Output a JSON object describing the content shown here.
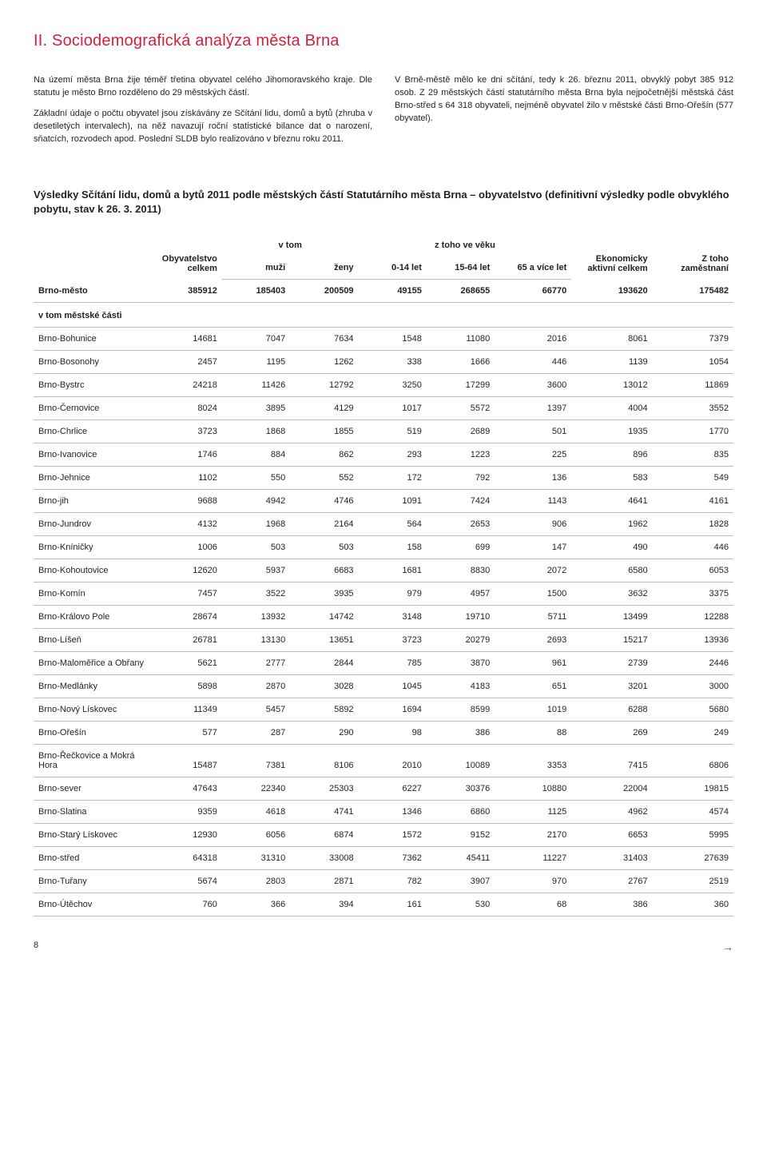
{
  "title": "II. Sociodemografická analýza města Brna",
  "para_left_1": "Na území města Brna žije téměř třetina obyvatel celého Jihomoravského kraje. Dle statutu je město Brno rozděleno do 29 městských částí.",
  "para_left_2": "Základní údaje o počtu obyvatel jsou získávány ze Sčítání lidu, domů a bytů (zhruba v desetiletých intervalech), na něž navazují roční statistické bilance dat o narození, sňatcích, rozvodech apod. Poslední SLDB bylo realizováno v březnu roku 2011.",
  "para_right": "V Brně-městě mělo ke dni sčítání, tedy k 26. březnu 2011, obvyklý pobyt 385 912 osob. Z 29 městských částí statutárního města Brna byla nejpočetnější městská část Brno-střed s 64 318 obyvateli, nejméně obyvatel žilo v městské části Brno-Ořešín (577 obyvatel).",
  "table_heading": "Výsledky Sčítání lidu, domů a bytů 2011 podle městských částí Statutárního města Brna – obyvatelstvo (definitivní výsledky podle obvyklého pobytu, stav k 26. 3. 2011)",
  "columns": {
    "obyv": "Obyvatelstvo celkem",
    "vtom": "v tom",
    "muzi": "muži",
    "zeny": "ženy",
    "ztoho": "z toho ve věku",
    "a0_14": "0-14 let",
    "a15_64": "15-64 let",
    "a65": "65 a více let",
    "ekon": "Ekonomicky aktivní celkem",
    "zam": "Z toho zaměstnaní"
  },
  "total_row": [
    "Brno-město",
    "385912",
    "185403",
    "200509",
    "49155",
    "268655",
    "66770",
    "193620",
    "175482"
  ],
  "section_label": "v tom městské části",
  "rows": [
    [
      "Brno-Bohunice",
      "14681",
      "7047",
      "7634",
      "1548",
      "11080",
      "2016",
      "8061",
      "7379"
    ],
    [
      "Brno-Bosonohy",
      "2457",
      "1195",
      "1262",
      "338",
      "1666",
      "446",
      "1139",
      "1054"
    ],
    [
      "Brno-Bystrc",
      "24218",
      "11426",
      "12792",
      "3250",
      "17299",
      "3600",
      "13012",
      "11869"
    ],
    [
      "Brno-Černovice",
      "8024",
      "3895",
      "4129",
      "1017",
      "5572",
      "1397",
      "4004",
      "3552"
    ],
    [
      "Brno-Chrlice",
      "3723",
      "1868",
      "1855",
      "519",
      "2689",
      "501",
      "1935",
      "1770"
    ],
    [
      "Brno-Ivanovice",
      "1746",
      "884",
      "862",
      "293",
      "1223",
      "225",
      "896",
      "835"
    ],
    [
      "Brno-Jehnice",
      "1102",
      "550",
      "552",
      "172",
      "792",
      "136",
      "583",
      "549"
    ],
    [
      "Brno-jih",
      "9688",
      "4942",
      "4746",
      "1091",
      "7424",
      "1143",
      "4641",
      "4161"
    ],
    [
      "Brno-Jundrov",
      "4132",
      "1968",
      "2164",
      "564",
      "2653",
      "906",
      "1962",
      "1828"
    ],
    [
      "Brno-Kníničky",
      "1006",
      "503",
      "503",
      "158",
      "699",
      "147",
      "490",
      "446"
    ],
    [
      "Brno-Kohoutovice",
      "12620",
      "5937",
      "6683",
      "1681",
      "8830",
      "2072",
      "6580",
      "6053"
    ],
    [
      "Brno-Komín",
      "7457",
      "3522",
      "3935",
      "979",
      "4957",
      "1500",
      "3632",
      "3375"
    ],
    [
      "Brno-Královo Pole",
      "28674",
      "13932",
      "14742",
      "3148",
      "19710",
      "5711",
      "13499",
      "12288"
    ],
    [
      "Brno-Líšeň",
      "26781",
      "13130",
      "13651",
      "3723",
      "20279",
      "2693",
      "15217",
      "13936"
    ],
    [
      "Brno-Maloměřice a Obřany",
      "5621",
      "2777",
      "2844",
      "785",
      "3870",
      "961",
      "2739",
      "2446"
    ],
    [
      "Brno-Medlánky",
      "5898",
      "2870",
      "3028",
      "1045",
      "4183",
      "651",
      "3201",
      "3000"
    ],
    [
      "Brno-Nový Lískovec",
      "11349",
      "5457",
      "5892",
      "1694",
      "8599",
      "1019",
      "6288",
      "5680"
    ],
    [
      "Brno-Ořešín",
      "577",
      "287",
      "290",
      "98",
      "386",
      "88",
      "269",
      "249"
    ],
    [
      "Brno-Řečkovice a Mokrá Hora",
      "15487",
      "7381",
      "8106",
      "2010",
      "10089",
      "3353",
      "7415",
      "6806"
    ],
    [
      "Brno-sever",
      "47643",
      "22340",
      "25303",
      "6227",
      "30376",
      "10880",
      "22004",
      "19815"
    ],
    [
      "Brno-Slatina",
      "9359",
      "4618",
      "4741",
      "1346",
      "6860",
      "1125",
      "4962",
      "4574"
    ],
    [
      "Brno-Starý Lískovec",
      "12930",
      "6056",
      "6874",
      "1572",
      "9152",
      "2170",
      "6653",
      "5995"
    ],
    [
      "Brno-střed",
      "64318",
      "31310",
      "33008",
      "7362",
      "45411",
      "11227",
      "31403",
      "27639"
    ],
    [
      "Brno-Tuřany",
      "5674",
      "2803",
      "2871",
      "782",
      "3907",
      "970",
      "2767",
      "2519"
    ],
    [
      "Brno-Útěchov",
      "760",
      "366",
      "394",
      "161",
      "530",
      "68",
      "386",
      "360"
    ]
  ],
  "page_number": "8",
  "arrow": "→",
  "col_widths": [
    "140px",
    "80px",
    "80px",
    "80px",
    "80px",
    "80px",
    "90px",
    "95px",
    "95px"
  ]
}
